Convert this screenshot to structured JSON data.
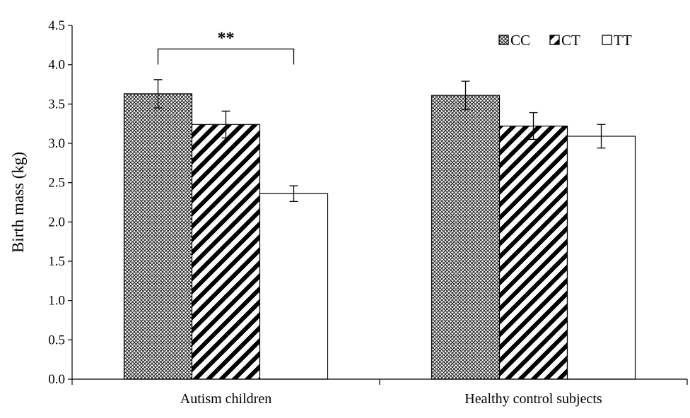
{
  "chart_data": {
    "type": "bar",
    "title": "",
    "xlabel": "",
    "ylabel": "Birth mass (kg)",
    "ylim": [
      0,
      4.5
    ],
    "yticks": [
      "0.0",
      "0.5",
      "1.0",
      "1.5",
      "2.0",
      "2.5",
      "3.0",
      "3.5",
      "4.0",
      "4.5"
    ],
    "categories": [
      "Autism children",
      "Healthy control subjects"
    ],
    "series": [
      {
        "name": "CC",
        "pattern": "crosshatch",
        "values": [
          3.63,
          3.61
        ],
        "errors": [
          0.18,
          0.18
        ]
      },
      {
        "name": "CT",
        "pattern": "diagonal",
        "values": [
          3.24,
          3.22
        ],
        "errors": [
          0.17,
          0.17
        ]
      },
      {
        "name": "TT",
        "pattern": "blank",
        "values": [
          2.36,
          3.09
        ],
        "errors": [
          0.1,
          0.15
        ]
      }
    ],
    "legend_position": "top-right",
    "grid": false,
    "annotations": [
      {
        "text": "**",
        "category": "Autism children",
        "from_series": "CC",
        "to_series": "TT",
        "y": 4.2
      }
    ]
  },
  "colors": {
    "bar_fill": "#ffffff",
    "pattern": "#000000",
    "axis": "#000000"
  }
}
